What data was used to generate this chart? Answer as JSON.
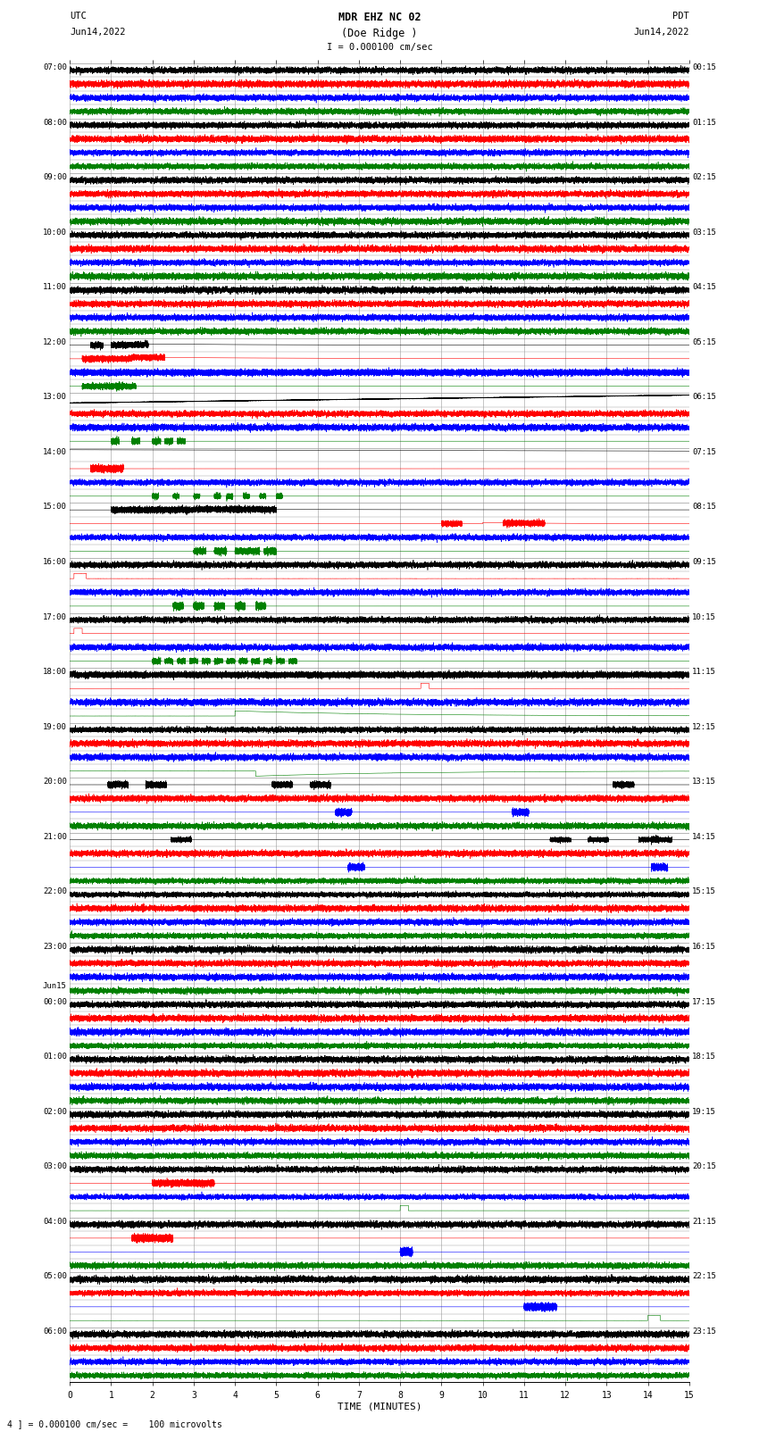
{
  "title_line1": "MDR EHZ NC 02",
  "title_line2": "(Doe Ridge )",
  "scale_label": "I = 0.000100 cm/sec",
  "left_label_top": "UTC",
  "left_label_date": "Jun14,2022",
  "right_label_top": "PDT",
  "right_label_date": "Jun14,2022",
  "bottom_label": "TIME (MINUTES)",
  "bottom_note": "4 ] = 0.000100 cm/sec =    100 microvolts",
  "utc_times": [
    "07:00",
    "08:00",
    "09:00",
    "10:00",
    "11:00",
    "12:00",
    "13:00",
    "14:00",
    "15:00",
    "16:00",
    "17:00",
    "18:00",
    "19:00",
    "20:00",
    "21:00",
    "22:00",
    "23:00",
    "00:00",
    "01:00",
    "02:00",
    "03:00",
    "04:00",
    "05:00",
    "06:00"
  ],
  "pdt_times": [
    "00:15",
    "01:15",
    "02:15",
    "03:15",
    "04:15",
    "05:15",
    "06:15",
    "07:15",
    "08:15",
    "09:15",
    "10:15",
    "11:15",
    "12:15",
    "13:15",
    "14:15",
    "15:15",
    "16:15",
    "17:15",
    "18:15",
    "19:15",
    "20:15",
    "21:15",
    "22:15",
    "23:15"
  ],
  "jun15_row": 17,
  "n_rows": 24,
  "n_cols": 4,
  "minutes": 15,
  "colors": [
    "black",
    "red",
    "blue",
    "green"
  ],
  "bg_color": "white",
  "grid_color": "#999999",
  "fig_width": 8.5,
  "fig_height": 16.13,
  "dpi": 100
}
